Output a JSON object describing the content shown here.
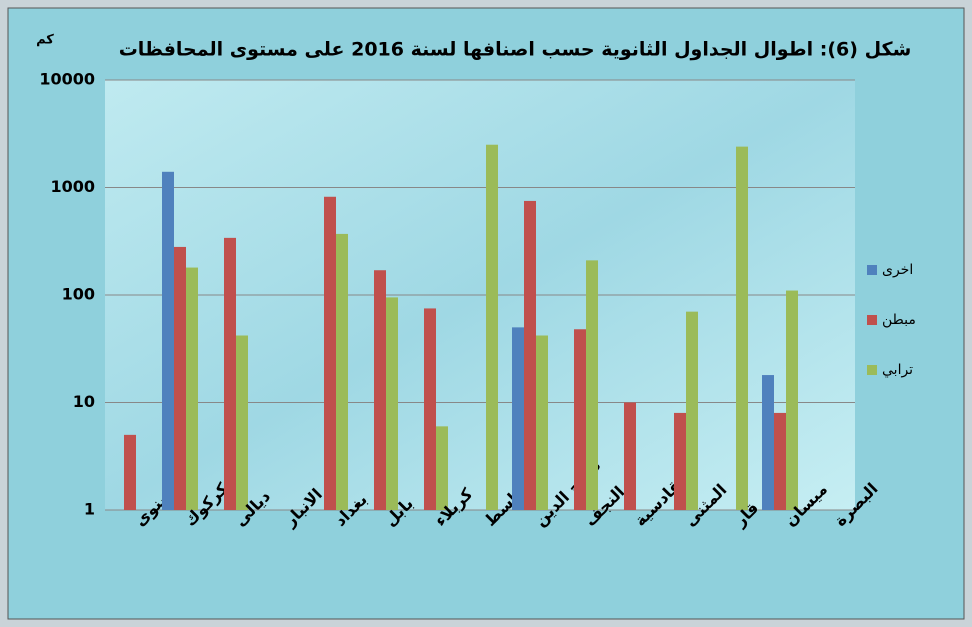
{
  "chart_data": {
    "type": "bar",
    "title": "شكل (6): اطوال الجداول الثانوية حسب اصنافها لسنة 2016 على مستوى المحافظات",
    "y_label": "كم",
    "categories": [
      "نينوى",
      "كركوك",
      "ديالى",
      "الانبار",
      "بغداد",
      "بابل",
      "كربلاء",
      "واسط",
      "صلاح الدين",
      "النجف",
      "القادسية",
      "المثنى",
      "ذي قار",
      "ميسان",
      "البصرة"
    ],
    "series": [
      {
        "name": "اخرى",
        "color": "#4f81bd",
        "values": [
          null,
          1400,
          null,
          null,
          null,
          null,
          null,
          null,
          50,
          null,
          null,
          null,
          null,
          18,
          null
        ]
      },
      {
        "name": "مبطن",
        "color": "#c0504d",
        "values": [
          5,
          280,
          340,
          null,
          820,
          170,
          75,
          null,
          750,
          48,
          10,
          8,
          null,
          8,
          null
        ]
      },
      {
        "name": "ترابي",
        "color": "#9bbb59",
        "values": [
          null,
          180,
          42,
          null,
          370,
          95,
          6,
          2500,
          42,
          210,
          null,
          70,
          2400,
          110,
          null
        ]
      }
    ],
    "ylim": [
      1,
      10000
    ],
    "yticks": [
      1,
      10,
      100,
      1000,
      10000
    ],
    "log_scale": true,
    "grid": true,
    "legend": "right"
  }
}
